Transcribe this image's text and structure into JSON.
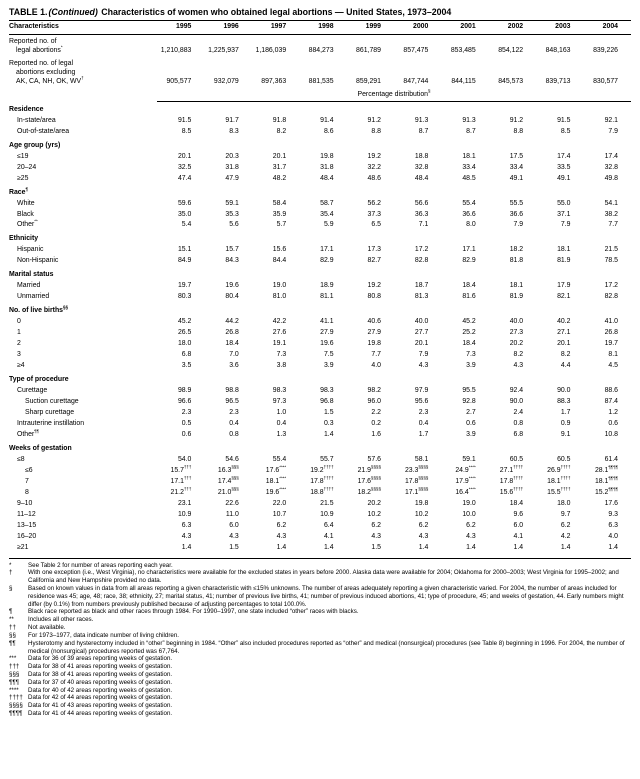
{
  "title": {
    "table_label": "TABLE 1.",
    "continued": "(Continued)",
    "text": "Characteristics of women who obtained legal abortions — United States, 1973–2004"
  },
  "columns": {
    "characteristics": "Characteristics",
    "years": [
      "1995",
      "1996",
      "1997",
      "1998",
      "1999",
      "2000",
      "2001",
      "2002",
      "2003",
      "2004"
    ]
  },
  "count_rows": [
    {
      "label_lines": [
        "Reported no. of",
        "legal abortions*"
      ],
      "values": [
        "1,210,883",
        "1,225,937",
        "1,186,039",
        "884,273",
        "861,789",
        "857,475",
        "853,485",
        "854,122",
        "848,163",
        "839,226"
      ]
    },
    {
      "label_lines": [
        "Reported no. of legal",
        "abortions excluding",
        "AK, CA, NH, OK, WV†"
      ],
      "values": [
        "905,577",
        "932,079",
        "897,363",
        "881,535",
        "859,291",
        "847,744",
        "844,115",
        "845,573",
        "839,713",
        "830,577"
      ]
    }
  ],
  "banner": "Percentage distribution§",
  "sections": [
    {
      "heading": "Residence",
      "rows": [
        {
          "label": "In-state/area",
          "indent": 1,
          "values": [
            "91.5",
            "91.7",
            "91.8",
            "91.4",
            "91.2",
            "91.3",
            "91.3",
            "91.2",
            "91.5",
            "92.1"
          ]
        },
        {
          "label": "Out-of-state/area",
          "indent": 1,
          "values": [
            "8.5",
            "8.3",
            "8.2",
            "8.6",
            "8.8",
            "8.7",
            "8.7",
            "8.8",
            "8.5",
            "7.9"
          ]
        }
      ]
    },
    {
      "heading": "Age group (yrs)",
      "rows": [
        {
          "label": "≤19",
          "indent": 1,
          "values": [
            "20.1",
            "20.3",
            "20.1",
            "19.8",
            "19.2",
            "18.8",
            "18.1",
            "17.5",
            "17.4",
            "17.4"
          ]
        },
        {
          "label": "20–24",
          "indent": 1,
          "values": [
            "32.5",
            "31.8",
            "31.7",
            "31.8",
            "32.2",
            "32.8",
            "33.4",
            "33.4",
            "33.5",
            "32.8"
          ]
        },
        {
          "label": "≥25",
          "indent": 1,
          "values": [
            "47.4",
            "47.9",
            "48.2",
            "48.4",
            "48.6",
            "48.4",
            "48.5",
            "49.1",
            "49.1",
            "49.8"
          ]
        }
      ]
    },
    {
      "heading": "Race¶",
      "rows": [
        {
          "label": "White",
          "indent": 1,
          "values": [
            "59.6",
            "59.1",
            "58.4",
            "58.7",
            "56.2",
            "56.6",
            "55.4",
            "55.5",
            "55.0",
            "54.1"
          ]
        },
        {
          "label": "Black",
          "indent": 1,
          "values": [
            "35.0",
            "35.3",
            "35.9",
            "35.4",
            "37.3",
            "36.3",
            "36.6",
            "36.6",
            "37.1",
            "38.2"
          ]
        },
        {
          "label": "Other**",
          "indent": 1,
          "values": [
            "5.4",
            "5.6",
            "5.7",
            "5.9",
            "6.5",
            "7.1",
            "8.0",
            "7.9",
            "7.9",
            "7.7"
          ]
        }
      ]
    },
    {
      "heading": "Ethnicity",
      "rows": [
        {
          "label": "Hispanic",
          "indent": 1,
          "values": [
            "15.1",
            "15.7",
            "15.6",
            "17.1",
            "17.3",
            "17.2",
            "17.1",
            "18.2",
            "18.1",
            "21.5"
          ]
        },
        {
          "label": "Non-Hispanic",
          "indent": 1,
          "values": [
            "84.9",
            "84.3",
            "84.4",
            "82.9",
            "82.7",
            "82.8",
            "82.9",
            "81.8",
            "81.9",
            "78.5"
          ]
        }
      ]
    },
    {
      "heading": "Marital status",
      "rows": [
        {
          "label": "Married",
          "indent": 1,
          "values": [
            "19.7",
            "19.6",
            "19.0",
            "18.9",
            "19.2",
            "18.7",
            "18.4",
            "18.1",
            "17.9",
            "17.2"
          ]
        },
        {
          "label": "Unmarried",
          "indent": 1,
          "values": [
            "80.3",
            "80.4",
            "81.0",
            "81.1",
            "80.8",
            "81.3",
            "81.6",
            "81.9",
            "82.1",
            "82.8"
          ]
        }
      ]
    },
    {
      "heading": "No. of live births§§",
      "rows": [
        {
          "label": "0",
          "indent": 1,
          "values": [
            "45.2",
            "44.2",
            "42.2",
            "41.1",
            "40.6",
            "40.0",
            "45.2",
            "40.0",
            "40.2",
            "41.0"
          ]
        },
        {
          "label": "1",
          "indent": 1,
          "values": [
            "26.5",
            "26.8",
            "27.6",
            "27.9",
            "27.9",
            "27.7",
            "25.2",
            "27.3",
            "27.1",
            "26.8"
          ]
        },
        {
          "label": "2",
          "indent": 1,
          "values": [
            "18.0",
            "18.4",
            "19.1",
            "19.6",
            "19.8",
            "20.1",
            "18.4",
            "20.2",
            "20.1",
            "19.7"
          ]
        },
        {
          "label": "3",
          "indent": 1,
          "values": [
            "6.8",
            "7.0",
            "7.3",
            "7.5",
            "7.7",
            "7.9",
            "7.3",
            "8.2",
            "8.2",
            "8.1"
          ]
        },
        {
          "label": "≥4",
          "indent": 1,
          "values": [
            "3.5",
            "3.6",
            "3.8",
            "3.9",
            "4.0",
            "4.3",
            "3.9",
            "4.3",
            "4.4",
            "4.5"
          ]
        }
      ]
    },
    {
      "heading": "Type of procedure",
      "rows": [
        {
          "label": "Curettage",
          "indent": 1,
          "values": [
            "98.9",
            "98.8",
            "98.3",
            "98.3",
            "98.2",
            "97.9",
            "95.5",
            "92.4",
            "90.0",
            "88.6"
          ]
        },
        {
          "label": "Suction curettage",
          "indent": 2,
          "values": [
            "96.6",
            "96.5",
            "97.3",
            "96.8",
            "96.0",
            "95.6",
            "92.8",
            "90.0",
            "88.3",
            "87.4"
          ]
        },
        {
          "label": "Sharp curettage",
          "indent": 2,
          "values": [
            "2.3",
            "2.3",
            "1.0",
            "1.5",
            "2.2",
            "2.3",
            "2.7",
            "2.4",
            "1.7",
            "1.2"
          ]
        },
        {
          "label": "Intrauterine instillation",
          "indent": 1,
          "values": [
            "0.5",
            "0.4",
            "0.4",
            "0.3",
            "0.2",
            "0.4",
            "0.6",
            "0.8",
            "0.9",
            "0.6"
          ]
        },
        {
          "label": "Other¶¶",
          "indent": 1,
          "values": [
            "0.6",
            "0.8",
            "1.3",
            "1.4",
            "1.6",
            "1.7",
            "3.9",
            "6.8",
            "9.1",
            "10.8"
          ]
        }
      ]
    },
    {
      "heading": "Weeks of gestation",
      "rows": [
        {
          "label": "≤8",
          "indent": 1,
          "values": [
            "54.0",
            "54.6",
            "55.4",
            "55.7",
            "57.6",
            "58.1",
            "59.1",
            "60.5",
            "60.5",
            "61.4"
          ]
        },
        {
          "label": "≤6",
          "indent": 2,
          "values": [
            "15.7†††",
            "16.3§§§",
            "17.6****",
            "19.2††††",
            "21.9§§§§",
            "23.3§§§§",
            "24.9****",
            "27.1††††",
            "26.9††††",
            "28.1¶¶¶¶"
          ]
        },
        {
          "label": "7",
          "indent": 2,
          "values": [
            "17.1†††",
            "17.4§§§",
            "18.1****",
            "17.8††††",
            "17.6§§§§",
            "17.8§§§§",
            "17.9****",
            "17.8††††",
            "18.1††††",
            "18.1¶¶¶¶"
          ]
        },
        {
          "label": "8",
          "indent": 2,
          "values": [
            "21.2†††",
            "21.0§§§",
            "19.6****",
            "18.8††††",
            "18.2§§§§",
            "17.1§§§§",
            "16.4****",
            "15.6††††",
            "15.5††††",
            "15.2¶¶¶¶"
          ]
        },
        {
          "label": "9–10",
          "indent": 1,
          "values": [
            "23.1",
            "22.6",
            "22.0",
            "21.5",
            "20.2",
            "19.8",
            "19.0",
            "18.4",
            "18.0",
            "17.6"
          ]
        },
        {
          "label": "11–12",
          "indent": 1,
          "values": [
            "10.9",
            "11.0",
            "10.7",
            "10.9",
            "10.2",
            "10.2",
            "10.0",
            "9.6",
            "9.7",
            "9.3"
          ]
        },
        {
          "label": "13–15",
          "indent": 1,
          "values": [
            "6.3",
            "6.0",
            "6.2",
            "6.4",
            "6.2",
            "6.2",
            "6.2",
            "6.0",
            "6.2",
            "6.3"
          ]
        },
        {
          "label": "16–20",
          "indent": 1,
          "values": [
            "4.3",
            "4.3",
            "4.3",
            "4.1",
            "4.3",
            "4.3",
            "4.3",
            "4.1",
            "4.2",
            "4.0"
          ]
        },
        {
          "label": "≥21",
          "indent": 1,
          "values": [
            "1.4",
            "1.5",
            "1.4",
            "1.4",
            "1.5",
            "1.4",
            "1.4",
            "1.4",
            "1.4",
            "1.4"
          ]
        }
      ]
    }
  ],
  "footnotes": [
    {
      "marker": "*",
      "text": "See Table 2 for number of areas reporting each year."
    },
    {
      "marker": "†",
      "text": "With one exception (i.e., West Virginia), no characteristics were available for the excluded states in years before 2000. Alaska data were available for 2004; Oklahoma for 2000–2003; West Virginia for 1995–2002; and California and New Hampshire provided no data."
    },
    {
      "marker": "§",
      "text": "Based on known values in data from all areas reporting a given characteristic with ≤15% unknowns. The number of areas adequately reporting a given characteristic varied. For 2004, the number of areas included for residence was 45; age, 48; race, 38; ethnicity, 27; marital status, 41; number of previous live births, 41; number of previous induced abortions, 41; type of procedure, 45; and weeks of gestation, 44. Early numbers might differ (by 0.1%) from numbers previously published because of adjusting percentages to total 100.0%."
    },
    {
      "marker": "¶",
      "text": "Black race reported as black and other races through 1984. For 1990–1997, one state included “other” races with blacks."
    },
    {
      "marker": "**",
      "text": "Includes all other races."
    },
    {
      "marker": "††",
      "text": "Not available."
    },
    {
      "marker": "§§",
      "text": "For 1973–1977, data indicate number of living children."
    },
    {
      "marker": "¶¶",
      "text": "Hysterotomy and hysterectomy included in “other” beginning in 1984. “Other” also included procedures reported as “other” and medical (nonsurgical) procedures (see Table 8) beginning in 1996. For 2004, the number of medical (nonsurgical) procedures reported was 67,764."
    },
    {
      "marker": "***",
      "text": "Data for 36 of 39 areas reporting weeks of gestation."
    },
    {
      "marker": "†††",
      "text": "Data for 38 of 41 areas reporting weeks of gestation."
    },
    {
      "marker": "§§§",
      "text": "Data for 38 of 41 areas reporting weeks of gestation."
    },
    {
      "marker": "¶¶¶",
      "text": "Data for 37 of 40 areas reporting weeks of gestation."
    },
    {
      "marker": "****",
      "text": "Data for 40 of 42 areas reporting weeks of gestation."
    },
    {
      "marker": "††††",
      "text": "Data for 42 of 44 areas reporting weeks of gestation."
    },
    {
      "marker": "§§§§",
      "text": "Data for 41 of 43 areas reporting weeks of gestation."
    },
    {
      "marker": "¶¶¶¶",
      "text": "Data for 41 of 44 areas reporting weeks of gestation."
    }
  ]
}
